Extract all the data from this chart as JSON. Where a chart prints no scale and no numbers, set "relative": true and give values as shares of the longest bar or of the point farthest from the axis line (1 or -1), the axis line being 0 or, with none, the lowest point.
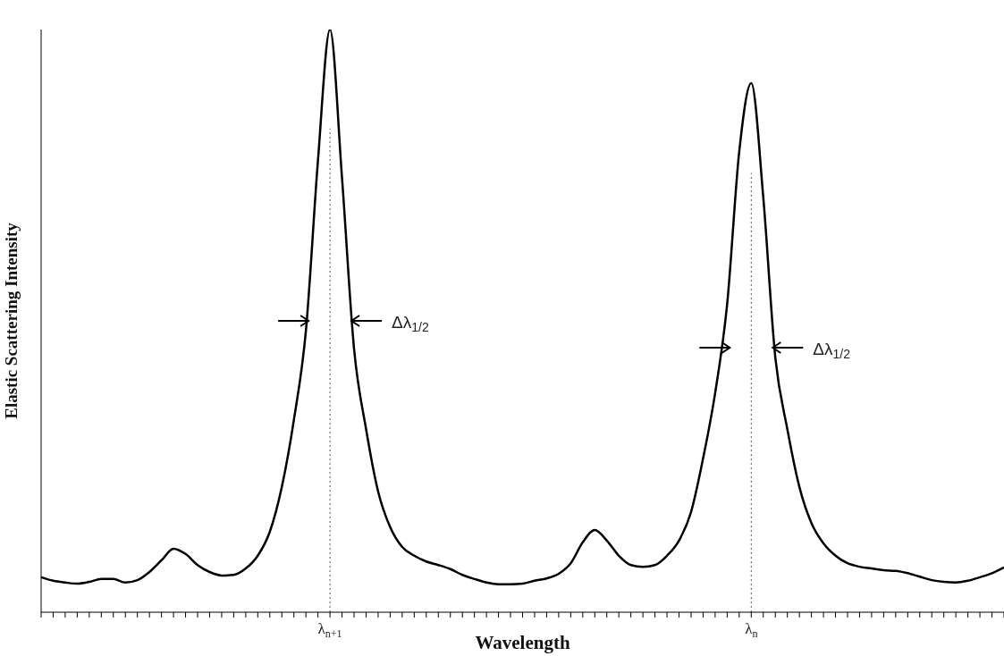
{
  "chart_data": {
    "type": "line",
    "relative": true,
    "xlabel": "Wavelength",
    "ylabel": "Elastic Scattering Intensity",
    "categories": [
      null,
      null,
      null,
      null,
      null,
      null,
      null,
      null,
      null,
      null,
      null,
      null,
      null,
      null,
      null,
      null,
      null,
      null,
      null,
      null,
      null,
      null,
      null,
      null,
      "λ$_{n+1}$",
      null,
      null,
      null,
      null,
      null,
      null,
      null,
      null,
      null,
      null,
      null,
      null,
      null,
      null,
      null,
      null,
      null,
      null,
      null,
      null,
      null,
      null,
      null,
      null,
      null,
      null,
      null,
      null,
      null,
      null,
      null,
      null,
      null,
      null,
      "λ$_{n}$",
      null,
      null,
      null,
      null,
      null,
      null,
      null,
      null,
      null,
      null,
      null,
      null,
      null,
      null,
      null,
      null,
      null,
      null,
      null,
      null,
      null
    ],
    "series": [
      {
        "color": "#000000",
        "values": [
          0.06,
          0.054,
          0.051,
          0.049,
          0.052,
          0.057,
          0.057,
          0.051,
          0.055,
          0.069,
          0.089,
          0.109,
          0.1,
          0.081,
          0.069,
          0.063,
          0.064,
          0.075,
          0.097,
          0.138,
          0.215,
          0.33,
          0.483,
          0.775,
          1.0,
          0.745,
          0.452,
          0.314,
          0.207,
          0.146,
          0.112,
          0.097,
          0.087,
          0.081,
          0.074,
          0.064,
          0.057,
          0.051,
          0.048,
          0.048,
          0.049,
          0.054,
          0.058,
          0.066,
          0.084,
          0.12,
          0.141,
          0.123,
          0.097,
          0.081,
          0.078,
          0.081,
          0.097,
          0.123,
          0.172,
          0.264,
          0.376,
          0.529,
          0.79,
          0.908,
          0.712,
          0.437,
          0.314,
          0.215,
          0.153,
          0.118,
          0.097,
          0.084,
          0.078,
          0.075,
          0.072,
          0.071,
          0.067,
          0.061,
          0.055,
          0.052,
          0.051,
          0.054,
          0.06,
          0.067,
          0.077
        ]
      }
    ],
    "ref_lines": [
      {
        "axis": "x",
        "value": "λ$_{n+1}$",
        "line_style": "dotted"
      },
      {
        "axis": "x",
        "value": "λ$_{n}$",
        "line_style": "dotted"
      }
    ],
    "annotations": [
      "Δλ$_{1/2}$",
      "Δλ$_{1/2}$"
    ],
    "grid": false,
    "legend": false
  }
}
